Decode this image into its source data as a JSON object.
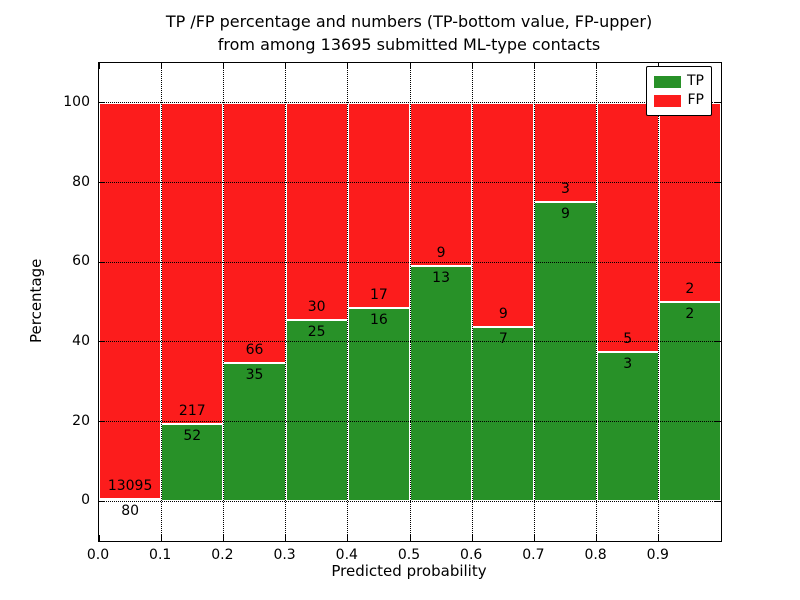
{
  "title": {
    "line1": "TP /FP percentage and numbers (TP-bottom value, FP-upper)",
    "line2": "from among 13695 submitted ML-type contacts"
  },
  "chart_data": {
    "type": "bar",
    "stacked": true,
    "normalized": "percent",
    "categories": [
      "0.0-0.1",
      "0.1-0.2",
      "0.2-0.3",
      "0.3-0.4",
      "0.4-0.5",
      "0.5-0.6",
      "0.6-0.7",
      "0.7-0.8",
      "0.8-0.9",
      "0.9-1.0"
    ],
    "bin_starts": [
      0.0,
      0.1,
      0.2,
      0.3,
      0.4,
      0.5,
      0.6,
      0.7,
      0.8,
      0.9
    ],
    "bin_width": 0.1,
    "series": [
      {
        "name": "TP",
        "color": "#289128",
        "values": [
          80,
          52,
          35,
          25,
          16,
          13,
          7,
          9,
          3,
          2
        ]
      },
      {
        "name": "FP",
        "color": "#fc1c1c",
        "values": [
          13095,
          217,
          66,
          30,
          17,
          9,
          9,
          3,
          5,
          2
        ]
      }
    ],
    "bar_edge_color": "#ffffff",
    "xlabel": "Predicted probability",
    "ylabel": "Percentage",
    "xlim": [
      0.0,
      1.0
    ],
    "ylim": [
      -10,
      110
    ],
    "xticks": [
      "0.0",
      "0.1",
      "0.2",
      "0.3",
      "0.4",
      "0.5",
      "0.6",
      "0.7",
      "0.8",
      "0.9"
    ],
    "yticks": [
      0,
      20,
      40,
      60,
      80,
      100
    ],
    "grid": "dotted",
    "legend": {
      "position": "upper right",
      "entries": [
        {
          "label": "TP",
          "color": "#289128"
        },
        {
          "label": "FP",
          "color": "#fc1c1c"
        }
      ]
    }
  }
}
